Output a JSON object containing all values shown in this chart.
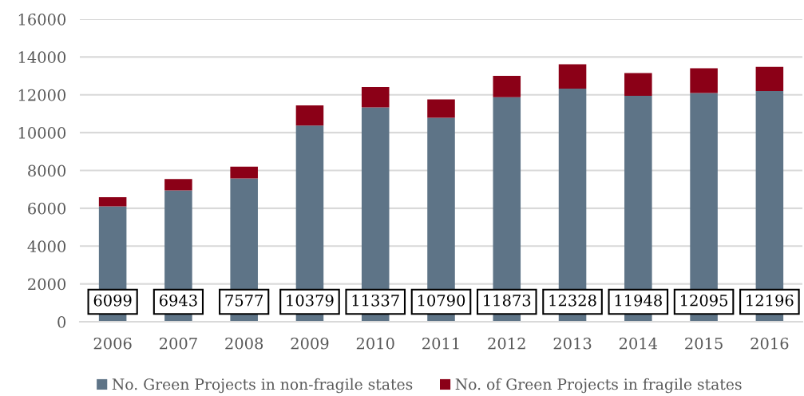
{
  "chart_data": {
    "type": "bar",
    "stacked": true,
    "categories": [
      "2006",
      "2007",
      "2008",
      "2009",
      "2010",
      "2011",
      "2012",
      "2013",
      "2014",
      "2015",
      "2016"
    ],
    "series": [
      {
        "name": "No. Green Projects in non-fragile states",
        "color": "#5e7487",
        "values": [
          6099,
          6943,
          7577,
          10379,
          11337,
          10790,
          11873,
          12328,
          11948,
          12095,
          12196
        ],
        "value_labels": [
          "6099",
          "6943",
          "7577",
          "10379",
          "11337",
          "10790",
          "11873",
          "12328",
          "11948",
          "12095",
          "12196"
        ]
      },
      {
        "name": "No. of Green Projects in fragile states",
        "color": "#8b0017",
        "values": [
          490,
          600,
          620,
          1060,
          1070,
          970,
          1130,
          1290,
          1200,
          1310,
          1280
        ]
      }
    ],
    "ylim": [
      0,
      16000
    ],
    "yticks": [
      0,
      2000,
      4000,
      6000,
      8000,
      10000,
      12000,
      14000,
      16000
    ],
    "grid": "y",
    "legend": "bottom"
  }
}
